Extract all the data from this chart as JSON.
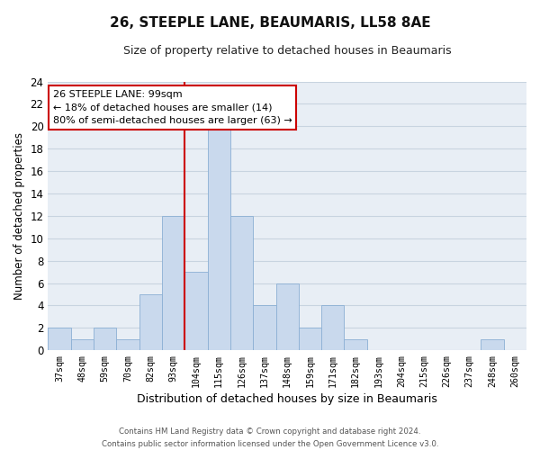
{
  "title": "26, STEEPLE LANE, BEAUMARIS, LL58 8AE",
  "subtitle": "Size of property relative to detached houses in Beaumaris",
  "xlabel": "Distribution of detached houses by size in Beaumaris",
  "ylabel": "Number of detached properties",
  "bar_labels": [
    "37sqm",
    "48sqm",
    "59sqm",
    "70sqm",
    "82sqm",
    "93sqm",
    "104sqm",
    "115sqm",
    "126sqm",
    "137sqm",
    "148sqm",
    "159sqm",
    "171sqm",
    "182sqm",
    "193sqm",
    "204sqm",
    "215sqm",
    "226sqm",
    "237sqm",
    "248sqm",
    "260sqm"
  ],
  "bar_heights": [
    2,
    1,
    2,
    1,
    5,
    12,
    7,
    20,
    12,
    4,
    6,
    2,
    4,
    1,
    0,
    0,
    0,
    0,
    0,
    1,
    0
  ],
  "bar_color": "#c9d9ed",
  "bar_edge_color": "#8bafd4",
  "annotation_title": "26 STEEPLE LANE: 99sqm",
  "annotation_line1": "← 18% of detached houses are smaller (14)",
  "annotation_line2": "80% of semi-detached houses are larger (63) →",
  "vline_color": "#cc0000",
  "ylim": [
    0,
    24
  ],
  "yticks": [
    0,
    2,
    4,
    6,
    8,
    10,
    12,
    14,
    16,
    18,
    20,
    22,
    24
  ],
  "footer_line1": "Contains HM Land Registry data © Crown copyright and database right 2024.",
  "footer_line2": "Contains public sector information licensed under the Open Government Licence v3.0.",
  "bg_color": "#ffffff",
  "plot_bg_color": "#e8eef5",
  "grid_color": "#c8d4e0",
  "annotation_box_color": "#ffffff",
  "annotation_box_edge": "#cc0000",
  "vline_index": 5.5
}
